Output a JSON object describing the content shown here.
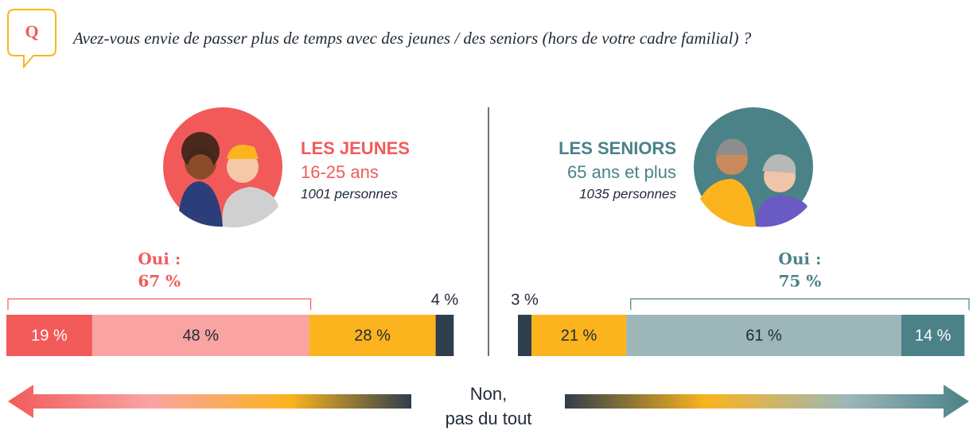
{
  "badge": "Q",
  "question": "Avez-vous envie de passer plus de temps avec des jeunes / des seniors (hors de votre cadre familial) ?",
  "footer": [
    "Non,",
    "pas du tout"
  ],
  "chart_data": [
    {
      "type": "stacked_bar",
      "title": "LES JEUNES",
      "subtitle": "16-25 ans",
      "note": "1001 personnes",
      "color": "#f25a5a",
      "values": [
        19,
        48,
        28,
        4
      ],
      "value_labels": [
        "19 %",
        "48 %",
        "28 %",
        "4 %"
      ],
      "colors": [
        "#f25a5a",
        "#f9a3a3",
        "#fbb41e",
        "#2f3e4c"
      ],
      "xlim": [
        0,
        100
      ],
      "yes_label": "Oui :",
      "yes_value": 67,
      "yes_value_label": "67 %"
    },
    {
      "type": "stacked_bar",
      "title": "LES SENIORS",
      "subtitle": "65 ans et plus",
      "note": "1035 personnes",
      "color": "#4a8288",
      "values": [
        3,
        21,
        61,
        14
      ],
      "value_labels": [
        "3 %",
        "21 %",
        "61 %",
        "14 %"
      ],
      "colors": [
        "#2f3e4c",
        "#fbb41e",
        "#9db6b8",
        "#4a8288"
      ],
      "xlim": [
        0,
        100
      ],
      "yes_label": "Oui :",
      "yes_value": 75,
      "yes_value_label": "75 %"
    }
  ]
}
